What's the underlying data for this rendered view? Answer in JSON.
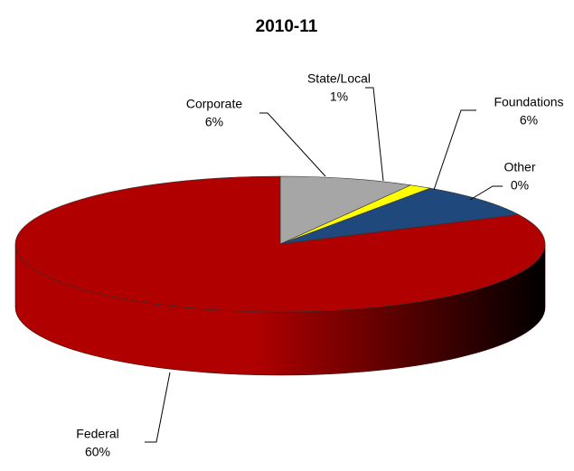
{
  "chart_data": {
    "type": "pie3d",
    "title": "2010-11",
    "categories": [
      "Corporate",
      "State/Local",
      "Foundations",
      "Other",
      "Federal"
    ],
    "values": [
      6,
      1,
      6,
      0,
      60
    ],
    "value_labels": [
      "6%",
      "1%",
      "6%",
      "0%",
      "60%"
    ],
    "colors": [
      "#a6a6a6",
      "#ffff00",
      "#1f497d",
      "#7f7f7f",
      "#b00000"
    ]
  }
}
